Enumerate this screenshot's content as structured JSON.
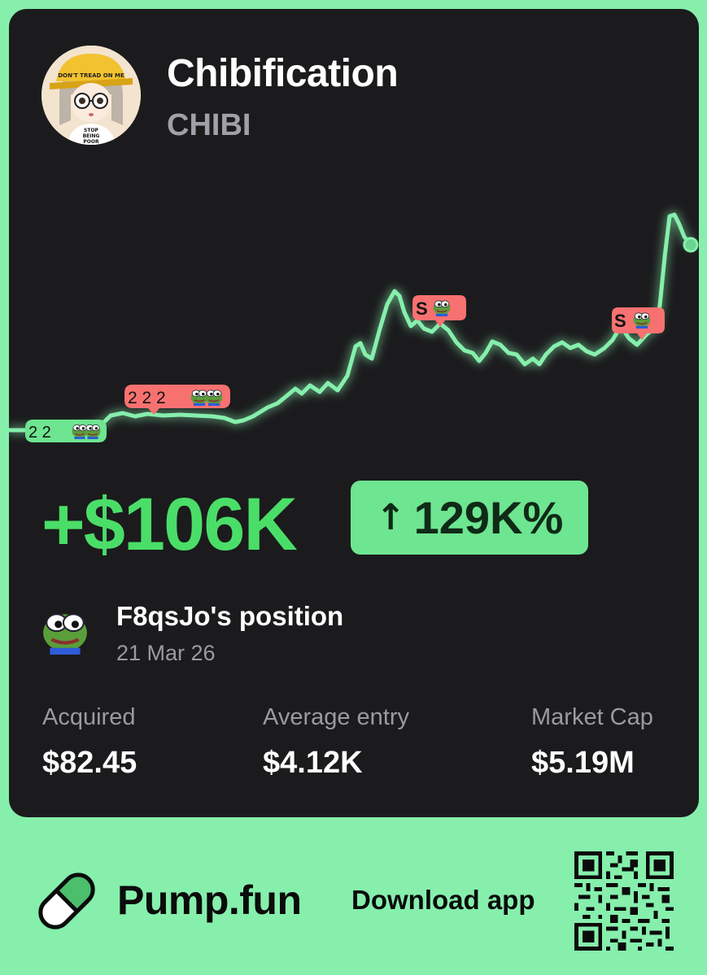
{
  "token": {
    "name": "Chibification",
    "symbol": "CHIBI",
    "avatar_icon": "chibi-avatar-icon",
    "avatar_text": [
      "DON'T TREAD ON ME",
      "STOP",
      "BEING",
      "POOR"
    ]
  },
  "chart": {
    "line_color": "#86EFAC",
    "trade_markers": [
      {
        "type": "buy",
        "label": "2 2",
        "color": "#6EE590"
      },
      {
        "type": "buy",
        "label": "2 2 2",
        "color": "#F87171"
      },
      {
        "type": "sell",
        "label": "S",
        "color": "#F87171"
      },
      {
        "type": "sell",
        "label": "S",
        "color": "#F87171"
      }
    ]
  },
  "pnl": {
    "amount": "+$106K",
    "percent": "129K%",
    "arrow": "↑"
  },
  "position": {
    "owner_label": "F8qsJo's position",
    "date": "21 Mar 26",
    "avatar_icon": "pepe-avatar-icon"
  },
  "stats": [
    {
      "label": "Acquired",
      "value": "$82.45"
    },
    {
      "label": "Average entry",
      "value": "$4.12K"
    },
    {
      "label": "Market Cap",
      "value": "$5.19M"
    }
  ],
  "footer": {
    "brand": "Pump.fun",
    "download_label": "Download app",
    "logo_icon": "pill-icon",
    "qr_icon": "qr-code-icon"
  },
  "colors": {
    "background": "#86EFAC",
    "card": "#1B1B1D",
    "accent_green": "#4ADE68",
    "badge_green": "#6EE590",
    "sell_red": "#F87171"
  }
}
